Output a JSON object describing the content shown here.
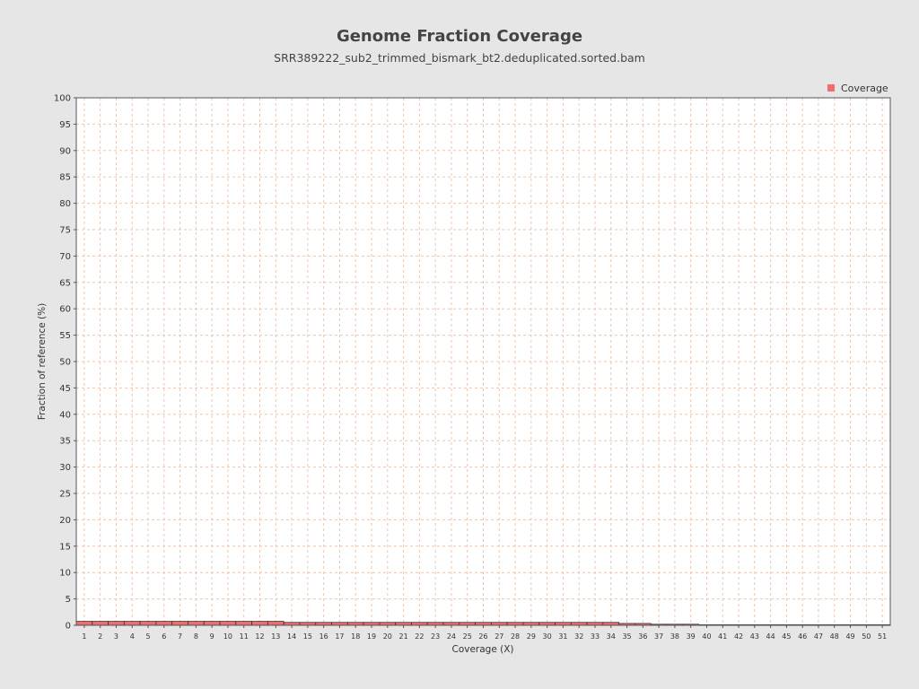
{
  "chart_data": {
    "type": "bar",
    "title": "Genome Fraction Coverage",
    "subtitle": "SRR389222_sub2_trimmed_bismark_bt2.deduplicated.sorted.bam",
    "xlabel": "Coverage (X)",
    "ylabel": "Fraction of reference (%)",
    "ylim": [
      0,
      100
    ],
    "yticks": [
      0,
      5,
      10,
      15,
      20,
      25,
      30,
      35,
      40,
      45,
      50,
      55,
      60,
      65,
      70,
      75,
      80,
      85,
      90,
      95,
      100
    ],
    "grid": true,
    "legend": {
      "position": "top-right",
      "entries": [
        "Coverage"
      ]
    },
    "categories": [
      "1",
      "2",
      "3",
      "4",
      "5",
      "6",
      "7",
      "8",
      "9",
      "10",
      "11",
      "12",
      "13",
      "14",
      "15",
      "16",
      "17",
      "18",
      "19",
      "20",
      "21",
      "22",
      "23",
      "24",
      "25",
      "26",
      "27",
      "28",
      "29",
      "30",
      "31",
      "32",
      "33",
      "34",
      "35",
      "36",
      "37",
      "38",
      "39",
      "40",
      "41",
      "42",
      "43",
      "44",
      "45",
      "46",
      "47",
      "48",
      "49",
      "50",
      "51"
    ],
    "series": [
      {
        "name": "Coverage",
        "color": "#ee6d6d",
        "values": [
          0.75,
          0.75,
          0.75,
          0.75,
          0.75,
          0.75,
          0.75,
          0.75,
          0.75,
          0.75,
          0.75,
          0.75,
          0.75,
          0.55,
          0.55,
          0.55,
          0.55,
          0.55,
          0.55,
          0.55,
          0.55,
          0.55,
          0.55,
          0.55,
          0.55,
          0.55,
          0.55,
          0.55,
          0.55,
          0.55,
          0.55,
          0.55,
          0.55,
          0.55,
          0.35,
          0.35,
          0.2,
          0.2,
          0.2,
          0.02,
          0.02,
          0.02,
          0.02,
          0.02,
          0.02,
          0.02,
          0.02,
          0.02,
          0.02,
          0.02,
          0.02
        ]
      }
    ]
  }
}
